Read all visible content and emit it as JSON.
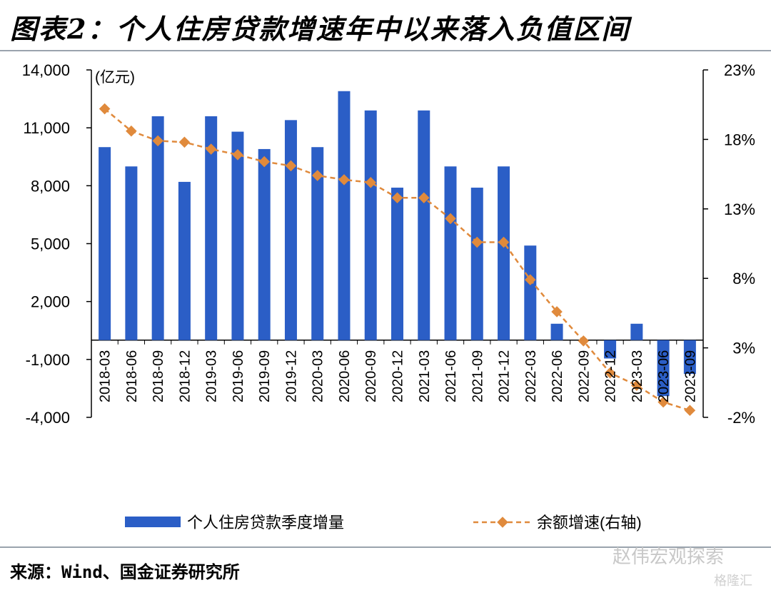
{
  "title": "图表2：个人住房贷款增速年中以来落入负值区间",
  "source": "来源：Wind、国金证券研究所",
  "watermark": "赵伟宏观探索",
  "watermark2": "格隆汇",
  "colors": {
    "bar": "#2b5ec6",
    "line": "#e08a3c"
  },
  "chart_data": {
    "type": "bar",
    "categories": [
      "2018-03",
      "2018-06",
      "2018-09",
      "2018-12",
      "2019-03",
      "2019-06",
      "2019-09",
      "2019-12",
      "2020-03",
      "2020-06",
      "2020-09",
      "2020-12",
      "2021-03",
      "2021-06",
      "2021-09",
      "2021-12",
      "2022-03",
      "2022-06",
      "2022-09",
      "2022-12",
      "2023-03",
      "2023-06",
      "2023-09"
    ],
    "y_left_label": "(亿元)",
    "y_left_ticks": [
      "14,000",
      "11,000",
      "8,000",
      "5,000",
      "2,000",
      "-1,000",
      "-4,000"
    ],
    "y_left_range": [
      -4000,
      14000
    ],
    "y_right_ticks": [
      "23%",
      "18%",
      "13%",
      "8%",
      "3%",
      "-2%"
    ],
    "y_right_range": [
      -2,
      23
    ],
    "series": [
      {
        "name": "个人住房贷款季度增量",
        "type": "bar",
        "values": [
          10000,
          9000,
          11600,
          8200,
          11600,
          10800,
          9900,
          11400,
          10000,
          12900,
          11900,
          7900,
          11900,
          9000,
          7900,
          9000,
          4900,
          850,
          0,
          -950,
          850,
          -2900,
          -1750
        ]
      },
      {
        "name": "余额增速(右轴)",
        "type": "line",
        "axis": "right",
        "values": [
          20.2,
          18.6,
          17.9,
          17.8,
          17.3,
          16.9,
          16.4,
          16.1,
          15.4,
          15.1,
          14.9,
          13.8,
          13.8,
          12.3,
          10.6,
          10.6,
          7.9,
          5.6,
          3.5,
          1.2,
          0.3,
          -0.9,
          -1.5
        ]
      }
    ]
  }
}
